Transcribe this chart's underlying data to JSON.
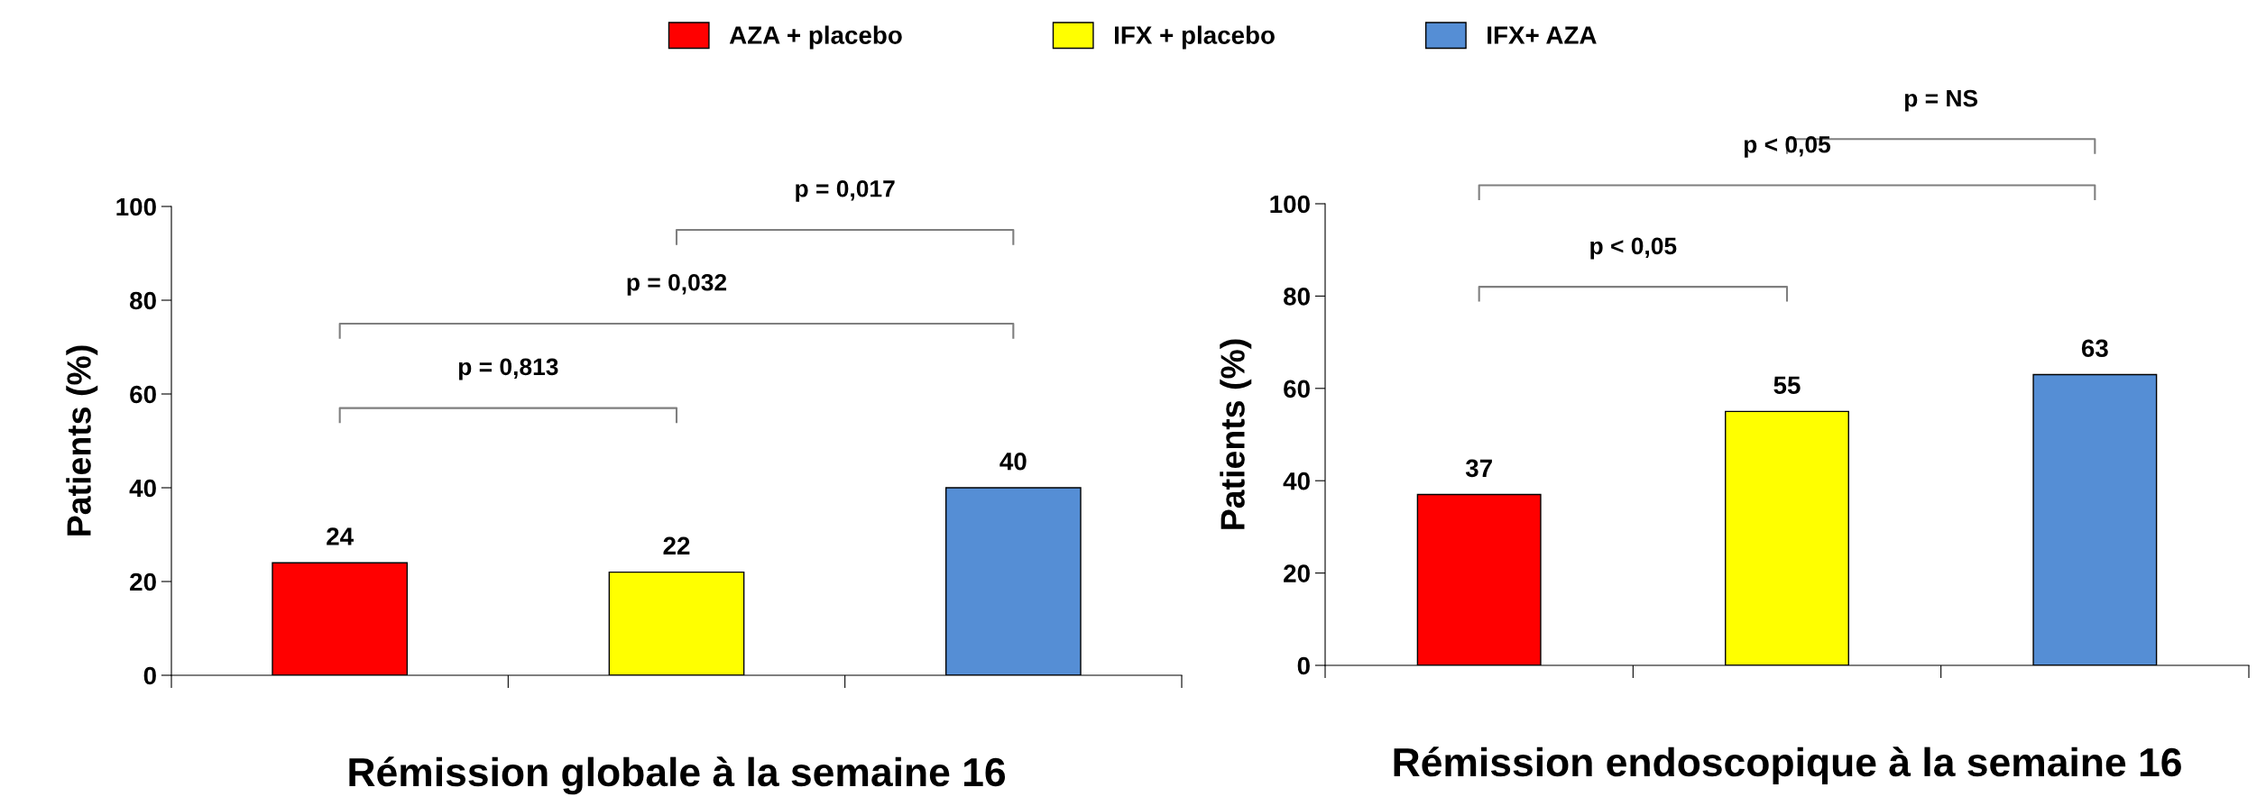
{
  "chart_data": [
    {
      "type": "bar",
      "xlabel": "Rémission globale à la semaine 16",
      "ylabel": "Patients (%)",
      "categories": [
        null,
        null,
        null
      ],
      "series": [
        {
          "name": "AZA + placebo",
          "color": "#ff0000",
          "values": [
            24,
            null,
            null
          ]
        },
        {
          "name": "IFX + placebo",
          "color": "#ffff00",
          "values": [
            null,
            22,
            null
          ]
        },
        {
          "name": "IFX+ AZA",
          "color": "#558ed5",
          "values": [
            null,
            null,
            40
          ]
        }
      ],
      "ylim": [
        0,
        100
      ],
      "yticks": [
        0,
        20,
        40,
        60,
        80,
        100
      ],
      "data_labels": true,
      "legend": "top",
      "grid": false,
      "annotations": [
        "p = 0,813",
        "p = 0,032",
        "p = 0,017"
      ]
    },
    {
      "type": "bar",
      "xlabel": "Rémission endoscopique à la semaine 16",
      "ylabel": "Patients (%)",
      "categories": [
        null,
        null,
        null
      ],
      "values": [
        37,
        55,
        63
      ],
      "colors": [
        "#ff0000",
        "#ffff00",
        "#558ed5"
      ],
      "ylim": [
        0,
        100
      ],
      "yticks": [
        0,
        20,
        40,
        60,
        80,
        100
      ],
      "data_labels": true,
      "grid": false,
      "annotations": [
        "p < 0,05",
        "p < 0,05",
        "p = NS"
      ]
    }
  ]
}
